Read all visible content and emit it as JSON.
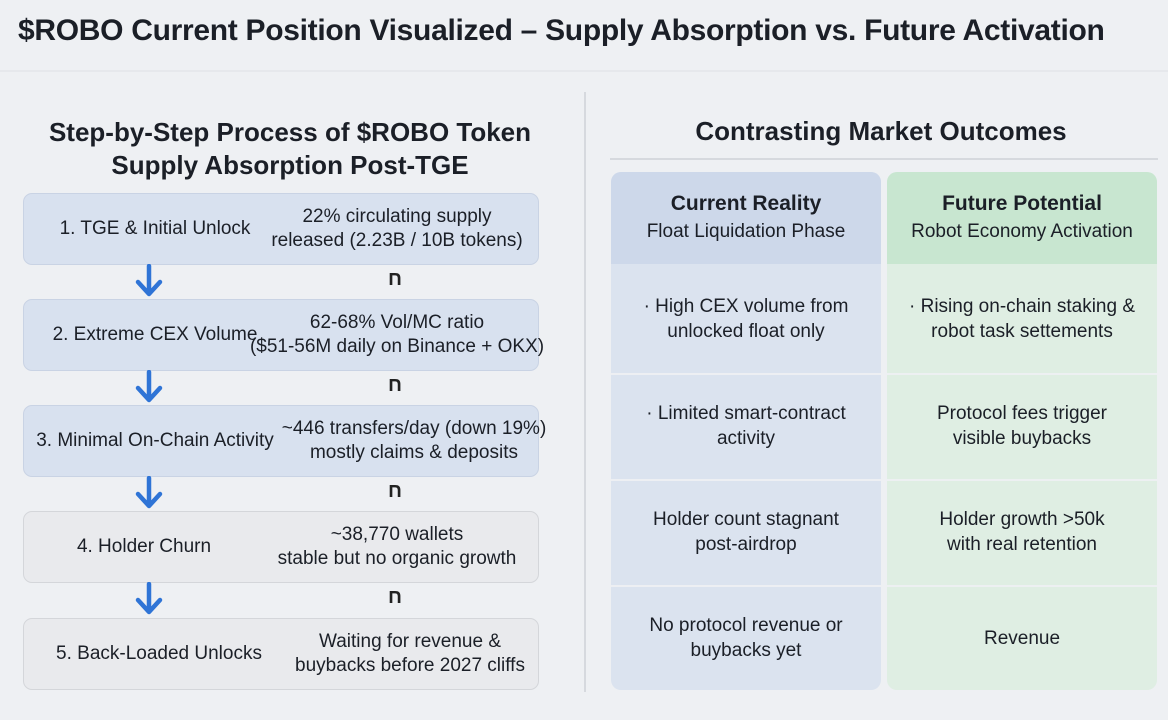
{
  "title": "$ROBO Current Position Visualized – Supply Absorption vs. Future Activation",
  "left": {
    "heading_line1": "Step-by-Step Process of $ROBO Token",
    "heading_line2": "Supply Absorption Post-TGE",
    "connector_glyph": "ח",
    "steps": [
      {
        "label": "1. TGE & Initial Unlock",
        "line1": "22% circulating supply",
        "line2": "released (2.23B / 10B tokens)"
      },
      {
        "label": "2. Extreme CEX Volume",
        "line1": "62-68% Vol/MC ratio",
        "line2": "($51-56M daily on Binance + OKX)"
      },
      {
        "label": "3. Minimal On-Chain Activity",
        "line1": "~446 transfers/day (down 19%)",
        "line2": "mostly claims & deposits"
      },
      {
        "label": "4. Holder Churn",
        "line1": "~38,770 wallets",
        "line2": "stable but no organic growth"
      },
      {
        "label": "5. Back-Loaded Unlocks",
        "line1": "Waiting for revenue &",
        "line2": "buybacks before 2027 cliffs"
      }
    ]
  },
  "right": {
    "heading": "Contrasting Market Outcomes",
    "current": {
      "title": "Current Reality",
      "subtitle": "Float Liquidation Phase",
      "rows": [
        {
          "line1": "· High CEX volume from",
          "line2": "unlocked float only"
        },
        {
          "line1": "· Limited smart-contract",
          "line2": "activity"
        },
        {
          "line1": "Holder count stagnant",
          "line2": "post-airdrop"
        },
        {
          "line1": "No protocol revenue or",
          "line2": "buybacks yet"
        }
      ]
    },
    "future": {
      "title": "Future Potential",
      "subtitle": "Robot Economy Activation",
      "rows": [
        {
          "line1": "· Rising on-chain staking &",
          "line2": "robot task settements"
        },
        {
          "line1": "Protocol fees trigger",
          "line2": "visible buybacks"
        },
        {
          "line1": "Holder growth >50k",
          "line2": "with real retention"
        },
        {
          "line1": "Revenue",
          "line2": ""
        }
      ]
    }
  },
  "colors": {
    "arrow": "#2f74d6",
    "step_blue": "#d8e1ef",
    "step_gray": "#e9eaed",
    "current_bg": "#dbe3ef",
    "future_bg": "#dfeee3"
  }
}
